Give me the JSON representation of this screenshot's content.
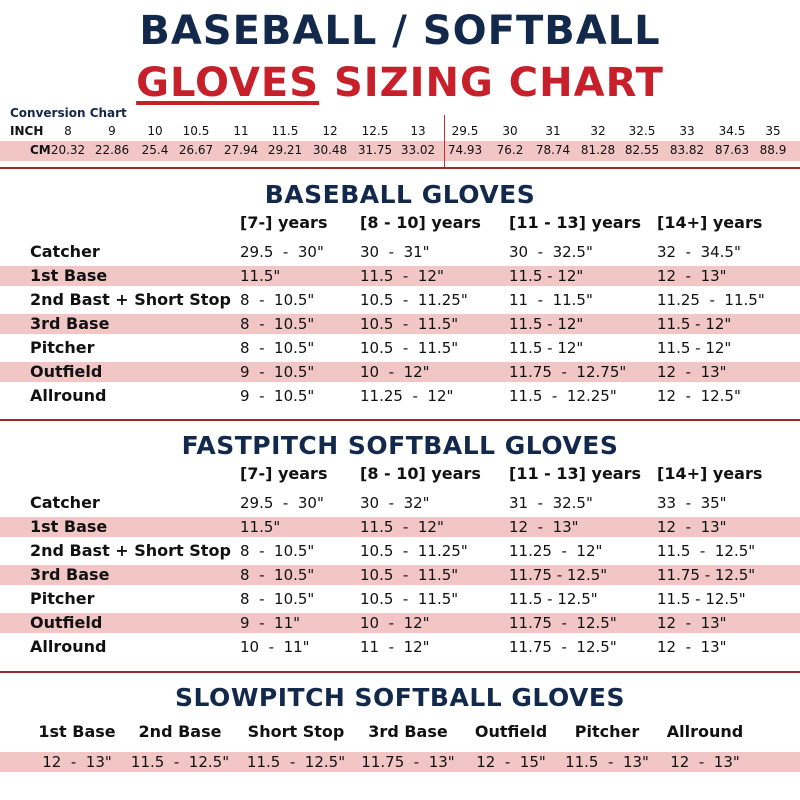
{
  "title": {
    "line1": "BASEBALL / SOFTBALL",
    "line2_underlined": "GLOVES",
    "line2_rest": " SIZING CHART"
  },
  "colors": {
    "navy": "#13294b",
    "red": "#c8202a",
    "pink_band": "#f3c6c6"
  },
  "conversion": {
    "title": "Conversion Chart",
    "inch_label": "INCH",
    "cm_label": "CM",
    "inch": [
      "8",
      "9",
      "10",
      "10.5",
      "11",
      "11.5",
      "12",
      "12.5",
      "13",
      "29.5",
      "30",
      "31",
      "32",
      "32.5",
      "33",
      "34.5",
      "35"
    ],
    "cm": [
      "20.32",
      "22.86",
      "25.4",
      "26.67",
      "27.94",
      "29.21",
      "30.48",
      "31.75",
      "33.02",
      "74.93",
      "76.2",
      "78.74",
      "81.28",
      "82.55",
      "83.82",
      "87.63",
      "88.9"
    ]
  },
  "baseball": {
    "title": "BASEBALL GLOVES",
    "headers": [
      "[7-] years",
      "[8 - 10] years",
      "[11 - 13] years",
      "[14+] years"
    ],
    "rows": [
      {
        "label": "Catcher",
        "values": [
          "29.5  -  30\"",
          "30  -  31\"",
          "30  -  32.5\"",
          "32  -  34.5\""
        ]
      },
      {
        "label": "1st Base",
        "values": [
          "11.5\"",
          "11.5  -  12\"",
          "11.5 - 12\"",
          "12  -  13\""
        ]
      },
      {
        "label": "2nd Bast + Short Stop",
        "values": [
          "8  -  10.5\"",
          "10.5  -  11.25\"",
          "11  -  11.5\"",
          "11.25  -  11.5\""
        ]
      },
      {
        "label": "3rd Base",
        "values": [
          "8  -  10.5\"",
          "10.5  -  11.5\"",
          "11.5 - 12\"",
          "11.5 - 12\""
        ]
      },
      {
        "label": "Pitcher",
        "values": [
          "8  -  10.5\"",
          "10.5  -  11.5\"",
          "11.5 - 12\"",
          "11.5 - 12\""
        ]
      },
      {
        "label": "Outfield",
        "values": [
          "9  -  10.5\"",
          "10  -  12\"",
          "11.75  -  12.75\"",
          "12  -  13\""
        ]
      },
      {
        "label": "Allround",
        "values": [
          "9  -  10.5\"",
          "11.25  -  12\"",
          "11.5  -  12.25\"",
          "12  -  12.5\""
        ]
      }
    ]
  },
  "fastpitch": {
    "title": "FASTPITCH SOFTBALL GLOVES",
    "headers": [
      "[7-] years",
      "[8 - 10] years",
      "[11 - 13] years",
      "[14+] years"
    ],
    "rows": [
      {
        "label": "Catcher",
        "values": [
          "29.5  -  30\"",
          "30  -  32\"",
          "31  -  32.5\"",
          "33  -  35\""
        ]
      },
      {
        "label": "1st Base",
        "values": [
          "11.5\"",
          "11.5  -  12\"",
          "12  -  13\"",
          "12  -  13\""
        ]
      },
      {
        "label": "2nd Bast + Short Stop",
        "values": [
          "8  -  10.5\"",
          "10.5  -  11.25\"",
          "11.25  -  12\"",
          "11.5  -  12.5\""
        ]
      },
      {
        "label": "3rd Base",
        "values": [
          "8  -  10.5\"",
          "10.5  -  11.5\"",
          "11.75 - 12.5\"",
          "11.75 - 12.5\""
        ]
      },
      {
        "label": "Pitcher",
        "values": [
          "8  -  10.5\"",
          "10.5  -  11.5\"",
          "11.5 - 12.5\"",
          "11.5 - 12.5\""
        ]
      },
      {
        "label": "Outfield",
        "values": [
          "9  -  11\"",
          "10  -  12\"",
          "11.75  -  12.5\"",
          "12  -  13\""
        ]
      },
      {
        "label": "Allround",
        "values": [
          "10  -  11\"",
          "11  -  12\"",
          "11.75  -  12.5\"",
          "12  -  13\""
        ]
      }
    ]
  },
  "slowpitch": {
    "title": "SLOWPITCH SOFTBALL GLOVES",
    "positions": [
      "1st Base",
      "2nd Base",
      "Short Stop",
      "3rd Base",
      "Outfield",
      "Pitcher",
      "Allround"
    ],
    "values": [
      "12  -  13\"",
      "11.5  -  12.5\"",
      "11.5  -  12.5\"",
      "11.75  -  13\"",
      "12  -  15\"",
      "11.5  -  13\"",
      "12  -  13\""
    ]
  }
}
